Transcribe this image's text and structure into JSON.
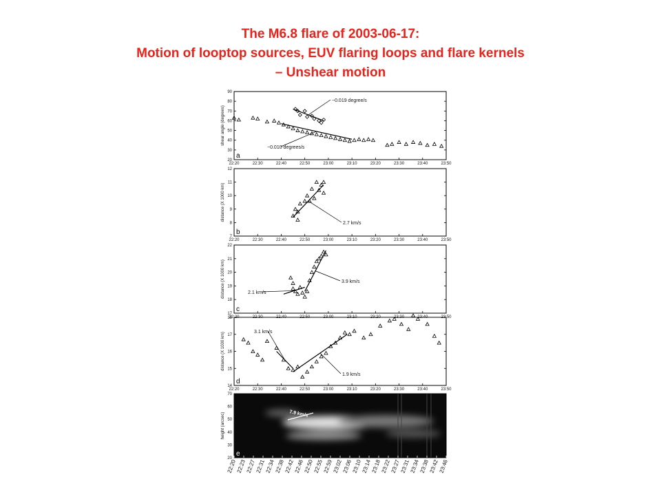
{
  "title": [
    "The M6.8 flare of 2003-06-17:",
    "Motion of looptop sources, EUV flaring loops and flare kernels",
    "– Unshear motion"
  ],
  "chart_data": [
    {
      "type": "scatter",
      "panel": "a",
      "ylabel": "shear angle (degrees)",
      "xlim": [
        "22:20",
        "23:50"
      ],
      "xticks": [
        "22:20",
        "22:30",
        "22:40",
        "22:50",
        "23:00",
        "23:10",
        "23:20",
        "23:30",
        "23:40",
        "23:50"
      ],
      "ylim": [
        20,
        90
      ],
      "yticks": [
        20,
        30,
        40,
        50,
        60,
        70,
        80,
        90
      ],
      "series": [
        {
          "marker": "triangle",
          "x": [
            "22:20",
            "22:22",
            "22:28",
            "22:30",
            "22:34",
            "22:37",
            "22:39",
            "22:41",
            "22:43",
            "22:45",
            "22:47",
            "22:49",
            "22:51",
            "22:53",
            "22:55",
            "22:57",
            "22:59",
            "23:01",
            "23:03",
            "23:05",
            "23:07",
            "23:09",
            "23:11",
            "23:13",
            "23:15",
            "23:17",
            "23:19",
            "23:25",
            "23:27",
            "23:30",
            "23:33",
            "23:36",
            "23:39",
            "23:42",
            "23:45",
            "23:48"
          ],
          "y": [
            63,
            61,
            63,
            62,
            59,
            60,
            58,
            56,
            54,
            52,
            50,
            49,
            48,
            47,
            46,
            45,
            44,
            43,
            42,
            41,
            40,
            39,
            40,
            41,
            40,
            41,
            40,
            35,
            36,
            38,
            36,
            38,
            37,
            35,
            36,
            34
          ]
        },
        {
          "marker": "diamond",
          "x": [
            "22:46",
            "22:47",
            "22:48",
            "22:50",
            "22:51",
            "22:53",
            "22:54",
            "22:56",
            "22:58",
            "22:57"
          ],
          "y": [
            72,
            70,
            66,
            70,
            64,
            65,
            62,
            60,
            61,
            58
          ]
        }
      ],
      "fits": [
        {
          "x": [
            "22:45",
            "22:58"
          ],
          "y": [
            72,
            60
          ],
          "label": "−0.019 degree/s"
        },
        {
          "x": [
            "22:40",
            "23:10"
          ],
          "y": [
            57,
            41
          ],
          "label": "−0.010 degrees/s"
        }
      ]
    },
    {
      "type": "scatter",
      "panel": "b",
      "ylabel": "distance (X 1000 km)",
      "xlim": [
        "22:20",
        "23:50"
      ],
      "xticks": [
        "22:20",
        "22:30",
        "22:40",
        "22:50",
        "23:00",
        "23:10",
        "23:20",
        "23:30",
        "23:40",
        "23:50"
      ],
      "ylim": [
        7,
        12
      ],
      "yticks": [
        7,
        8,
        9,
        10,
        11,
        12
      ],
      "series": [
        {
          "marker": "triangle",
          "x": [
            "22:45",
            "22:46",
            "22:47",
            "22:47",
            "22:48",
            "22:50",
            "22:51",
            "22:52",
            "22:53",
            "22:54",
            "22:55",
            "22:56",
            "22:57",
            "22:58",
            "22:58"
          ],
          "y": [
            8.5,
            9.0,
            8.8,
            8.2,
            9.4,
            9.6,
            10.0,
            9.6,
            10.5,
            9.8,
            11.0,
            10.4,
            10.8,
            11.0,
            10.2
          ]
        }
      ],
      "fits": [
        {
          "x": [
            "22:45",
            "22:58"
          ],
          "y": [
            8.4,
            10.8
          ],
          "label": "2.7 km/s"
        }
      ]
    },
    {
      "type": "scatter",
      "panel": "c",
      "ylabel": "distance (X 1000 km)",
      "xlim": [
        "22:20",
        "23:50"
      ],
      "xticks": [
        "22:20",
        "22:30",
        "22:40",
        "22:50",
        "23:00",
        "23:10",
        "23:20",
        "23:30",
        "23:40",
        "23:50"
      ],
      "ylim": [
        17,
        22
      ],
      "yticks": [
        17,
        18,
        19,
        20,
        21,
        22
      ],
      "series": [
        {
          "marker": "triangle",
          "x": [
            "22:44",
            "22:45",
            "22:45",
            "22:46",
            "22:47",
            "22:48",
            "22:49",
            "22:50",
            "22:51",
            "22:52",
            "22:53",
            "22:54",
            "22:55",
            "22:56",
            "22:57",
            "22:58",
            "22:59"
          ],
          "y": [
            19.6,
            19.2,
            18.8,
            18.6,
            18.4,
            18.9,
            18.5,
            18.2,
            18.6,
            19.4,
            20.0,
            20.4,
            20.8,
            21.0,
            21.2,
            21.5,
            21.3
          ]
        }
      ],
      "fits": [
        {
          "x": [
            "22:41",
            "22:50"
          ],
          "y": [
            18.4,
            18.9
          ],
          "label": "2.1 km/s"
        },
        {
          "x": [
            "22:50",
            "22:59"
          ],
          "y": [
            18.6,
            21.6
          ],
          "label": "3.9 km/s"
        }
      ]
    },
    {
      "type": "scatter",
      "panel": "d",
      "ylabel": "distance (X 1000 km)",
      "xlim": [
        "22:20",
        "23:50"
      ],
      "xticks": [
        "22:20",
        "22:30",
        "22:40",
        "22:50",
        "23:00",
        "23:10",
        "23:20",
        "23:30",
        "23:40",
        "23:50"
      ],
      "ylim": [
        14,
        18
      ],
      "yticks": [
        14,
        15,
        16,
        17,
        18
      ],
      "series": [
        {
          "marker": "triangle",
          "x": [
            "22:24",
            "22:26",
            "22:28",
            "22:30",
            "22:32",
            "22:34",
            "22:38",
            "22:41",
            "22:43",
            "22:45",
            "22:47",
            "22:49",
            "22:51",
            "22:53",
            "22:55",
            "22:57",
            "22:59",
            "23:01",
            "23:03",
            "23:05",
            "23:07",
            "23:09",
            "23:11",
            "23:15",
            "23:18",
            "23:22",
            "23:26",
            "23:28",
            "23:31",
            "23:34",
            "23:36",
            "23:38",
            "23:42",
            "23:45",
            "23:47"
          ],
          "y": [
            16.7,
            16.5,
            16.0,
            15.8,
            15.5,
            16.6,
            16.2,
            15.5,
            15.0,
            14.9,
            15.1,
            14.5,
            14.8,
            15.1,
            15.4,
            15.7,
            15.9,
            16.3,
            16.5,
            16.8,
            17.1,
            17.0,
            17.2,
            16.8,
            17.0,
            17.5,
            17.8,
            17.9,
            17.6,
            17.3,
            18.1,
            17.9,
            17.6,
            16.9,
            16.5
          ]
        }
      ],
      "fits": [
        {
          "x": [
            "22:38",
            "22:45"
          ],
          "y": [
            16.0,
            15.0
          ],
          "label": "3.1 km/s"
        },
        {
          "x": [
            "22:45",
            "23:08"
          ],
          "y": [
            14.8,
            17.0
          ],
          "label": "1.9 km/s"
        }
      ]
    },
    {
      "type": "image",
      "panel": "e",
      "ylabel": "height (arcsec)",
      "ylim": [
        20,
        70
      ],
      "yticks": [
        20,
        30,
        40,
        50,
        60,
        70
      ],
      "xticks": [
        "22:20",
        "22:23",
        "22:27",
        "22:31",
        "22:34",
        "22:38",
        "22:42",
        "22:46",
        "22:50",
        "22:55",
        "22:59",
        "23:02",
        "23:06",
        "23:10",
        "23:14",
        "23:18",
        "23:22",
        "23:27",
        "23:31",
        "23:34",
        "23:38",
        "23:42",
        "23:46"
      ],
      "annotation": "7.9 km/s"
    }
  ]
}
